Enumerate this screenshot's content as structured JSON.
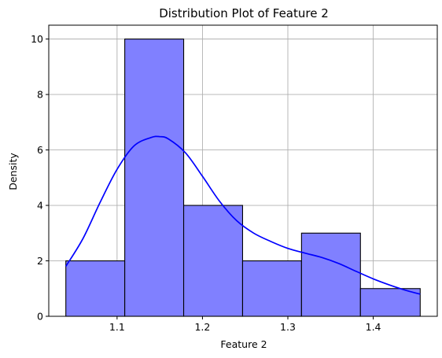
{
  "chart_data": {
    "type": "bar",
    "title": "Distribution Plot of Feature 2",
    "xlabel": "Feature 2",
    "ylabel": "Density",
    "xlim": [
      1.02,
      1.475
    ],
    "ylim": [
      0,
      10.5
    ],
    "xticks": [
      1.1,
      1.2,
      1.3,
      1.4
    ],
    "yticks": [
      0,
      2,
      4,
      6,
      8,
      10
    ],
    "xtick_labels": [
      "1.1",
      "1.2",
      "1.3",
      "1.4"
    ],
    "ytick_labels": [
      "0",
      "2",
      "4",
      "6",
      "8",
      "10"
    ],
    "grid": true,
    "bins": [
      {
        "x0": 1.04,
        "x1": 1.109,
        "value": 2
      },
      {
        "x0": 1.109,
        "x1": 1.178,
        "value": 10
      },
      {
        "x0": 1.178,
        "x1": 1.247,
        "value": 4
      },
      {
        "x0": 1.247,
        "x1": 1.316,
        "value": 2
      },
      {
        "x0": 1.316,
        "x1": 1.385,
        "value": 3
      },
      {
        "x0": 1.385,
        "x1": 1.455,
        "value": 1
      }
    ],
    "kde": {
      "x": [
        1.04,
        1.06,
        1.08,
        1.1,
        1.12,
        1.14,
        1.15,
        1.16,
        1.18,
        1.2,
        1.22,
        1.24,
        1.26,
        1.28,
        1.3,
        1.32,
        1.34,
        1.36,
        1.38,
        1.4,
        1.42,
        1.44,
        1.455
      ],
      "y": [
        1.8,
        2.8,
        4.1,
        5.3,
        6.15,
        6.45,
        6.48,
        6.4,
        5.9,
        5.05,
        4.15,
        3.45,
        3.0,
        2.7,
        2.45,
        2.28,
        2.12,
        1.9,
        1.62,
        1.35,
        1.12,
        0.92,
        0.8
      ]
    },
    "colors": {
      "bar_fill": "#8080ff",
      "bar_edge": "#000000",
      "kde_line": "#0000ff",
      "grid": "#b0b0b0"
    }
  }
}
